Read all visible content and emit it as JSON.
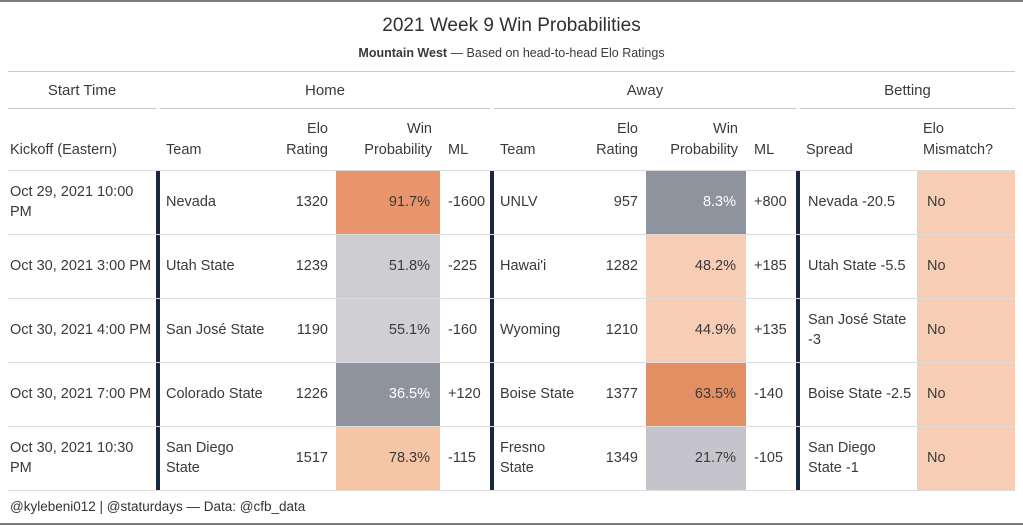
{
  "title": "2021 Week 9 Win Probabilities",
  "subtitle": {
    "bold": "Mountain West",
    "rest": " — Based on head-to-head Elo Ratings"
  },
  "groups": {
    "start_time": "Start Time",
    "home": "Home",
    "away": "Away",
    "betting": "Betting"
  },
  "columns": {
    "kickoff": "Kickoff (Eastern)",
    "team": "Team",
    "elo_line1": "Elo",
    "elo_line2": "Rating",
    "wp_line1": "Win",
    "wp_line2": "Probability",
    "ml": "ML",
    "spread": "Spread",
    "mismatch_line1": "Elo",
    "mismatch_line2": "Mismatch?"
  },
  "colors": {
    "separator": "#1a2742",
    "strong_orange": "#e8956c",
    "light_orange": "#f7cdb5",
    "dark_gray": "#8e939e",
    "light_gray": "#cecdd2",
    "text_dark": "#3a3a3a",
    "text_light": "#ffffff"
  },
  "rows": [
    {
      "kickoff": "Oct 29, 2021 10:00 PM",
      "home": {
        "team": "Nevada",
        "elo": "1320",
        "wp": "91.7%",
        "wp_bg": "#e8956c",
        "wp_fg": "#3a3a3a",
        "ml": "-1600"
      },
      "away": {
        "team": "UNLV",
        "elo": "957",
        "wp": "8.3%",
        "wp_bg": "#8e939e",
        "wp_fg": "#ffffff",
        "ml": "+800"
      },
      "betting": {
        "spread": "Nevada -20.5",
        "mismatch": "No",
        "mismatch_bg": "#f7cdb5"
      }
    },
    {
      "kickoff": "Oct 30, 2021 3:00 PM",
      "home": {
        "team": "Utah State",
        "elo": "1239",
        "wp": "51.8%",
        "wp_bg": "#cecdd2",
        "wp_fg": "#3a3a3a",
        "ml": "-225"
      },
      "away": {
        "team": "Hawai'i",
        "elo": "1282",
        "wp": "48.2%",
        "wp_bg": "#f7cdb5",
        "wp_fg": "#3a3a3a",
        "ml": "+185"
      },
      "betting": {
        "spread": "Utah State -5.5",
        "mismatch": "No",
        "mismatch_bg": "#f7cdb5"
      }
    },
    {
      "kickoff": "Oct 30, 2021 4:00 PM",
      "home": {
        "team": "San José State",
        "elo": "1190",
        "wp": "55.1%",
        "wp_bg": "#d0cfd4",
        "wp_fg": "#3a3a3a",
        "ml": "-160"
      },
      "away": {
        "team": "Wyoming",
        "elo": "1210",
        "wp": "44.9%",
        "wp_bg": "#f7cdb5",
        "wp_fg": "#3a3a3a",
        "ml": "+135"
      },
      "betting": {
        "spread": "San José State -3",
        "mismatch": "No",
        "mismatch_bg": "#f7cdb5"
      }
    },
    {
      "kickoff": "Oct 30, 2021 7:00 PM",
      "home": {
        "team": "Colorado State",
        "elo": "1226",
        "wp": "36.5%",
        "wp_bg": "#8e939e",
        "wp_fg": "#ffffff",
        "ml": "+120"
      },
      "away": {
        "team": "Boise State",
        "elo": "1377",
        "wp": "63.5%",
        "wp_bg": "#e18f63",
        "wp_fg": "#3a3a3a",
        "ml": "-140"
      },
      "betting": {
        "spread": "Boise State -2.5",
        "mismatch": "No",
        "mismatch_bg": "#f7cdb5"
      }
    },
    {
      "kickoff": "Oct 30, 2021 10:30 PM",
      "home": {
        "team": "San Diego State",
        "elo": "1517",
        "wp": "78.3%",
        "wp_bg": "#f5c5a6",
        "wp_fg": "#3a3a3a",
        "ml": "-115"
      },
      "away": {
        "team": "Fresno State",
        "elo": "1349",
        "wp": "21.7%",
        "wp_bg": "#c5c4ca",
        "wp_fg": "#3a3a3a",
        "ml": "-105"
      },
      "betting": {
        "spread": "San Diego State -1",
        "mismatch": "No",
        "mismatch_bg": "#f7cdb5"
      }
    }
  ],
  "footer": "@kylebeni012 | @staturdays — Data: @cfb_data",
  "chart_data": {
    "type": "table",
    "title": "2021 Week 9 Win Probabilities",
    "subtitle": "Mountain West — Based on head-to-head Elo Ratings",
    "column_groups": [
      "Start Time",
      "Home",
      "Away",
      "Betting"
    ],
    "columns": [
      "Kickoff (Eastern)",
      "Home Team",
      "Home Elo Rating",
      "Home Win Probability",
      "Home ML",
      "Away Team",
      "Away Elo Rating",
      "Away Win Probability",
      "Away ML",
      "Spread",
      "Elo Mismatch?"
    ],
    "rows": [
      [
        "Oct 29, 2021 10:00 PM",
        "Nevada",
        1320,
        "91.7%",
        -1600,
        "UNLV",
        957,
        "8.3%",
        800,
        "Nevada -20.5",
        "No"
      ],
      [
        "Oct 30, 2021 3:00 PM",
        "Utah State",
        1239,
        "51.8%",
        -225,
        "Hawai'i",
        1282,
        "48.2%",
        185,
        "Utah State -5.5",
        "No"
      ],
      [
        "Oct 30, 2021 4:00 PM",
        "San José State",
        1190,
        "55.1%",
        -160,
        "Wyoming",
        1210,
        "44.9%",
        135,
        "San José State -3",
        "No"
      ],
      [
        "Oct 30, 2021 7:00 PM",
        "Colorado State",
        1226,
        "36.5%",
        120,
        "Boise State",
        1377,
        "63.5%",
        -140,
        "Boise State -2.5",
        "No"
      ],
      [
        "Oct 30, 2021 10:30 PM",
        "San Diego State",
        1517,
        "78.3%",
        -115,
        "Fresno State",
        1349,
        "21.7%",
        -105,
        "San Diego State -1",
        "No"
      ]
    ],
    "footer": "@kylebeni012 | @staturdays — Data: @cfb_data"
  }
}
